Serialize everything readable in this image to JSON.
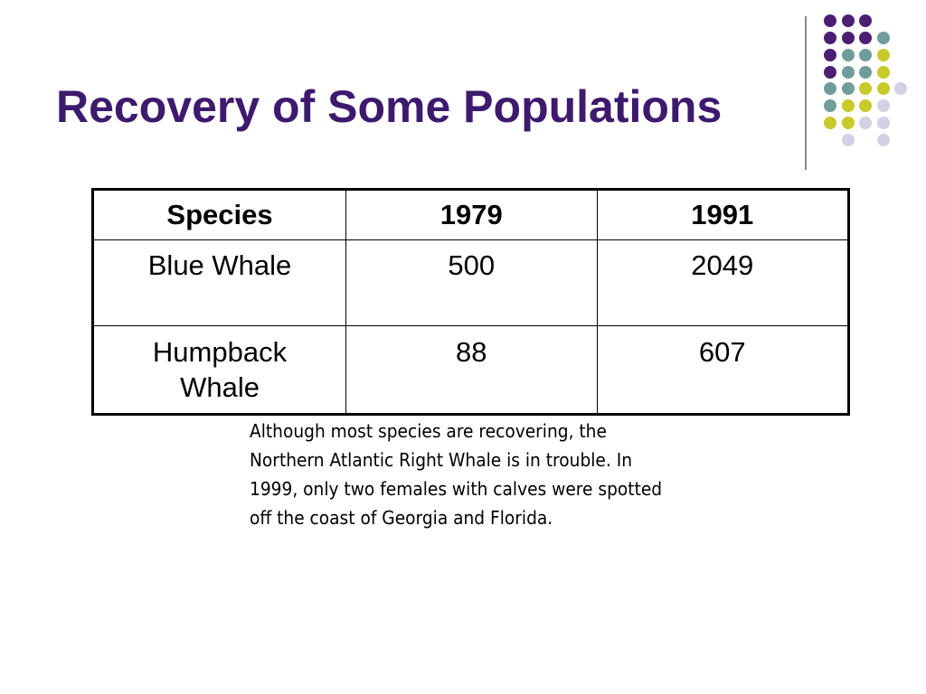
{
  "slide": {
    "title": "Recovery of Some Populations"
  },
  "table": {
    "headers": [
      "Species",
      "1979",
      "1991"
    ],
    "rows": [
      [
        "Blue Whale",
        "500",
        "2049"
      ],
      [
        "Humpback Whale",
        "88",
        "607"
      ]
    ]
  },
  "note": "Although most species are recovering, the Northern Atlantic Right Whale is in trouble. In 1999, only two females with calves were spotted off the coast of Georgia and Florida.",
  "colors": {
    "title": "#3d1a6e",
    "dot_purple": "#4b1f73",
    "dot_teal": "#6f9d9a",
    "dot_yellow": "#c8c92a",
    "dot_lavender": "#d3d1e6"
  }
}
